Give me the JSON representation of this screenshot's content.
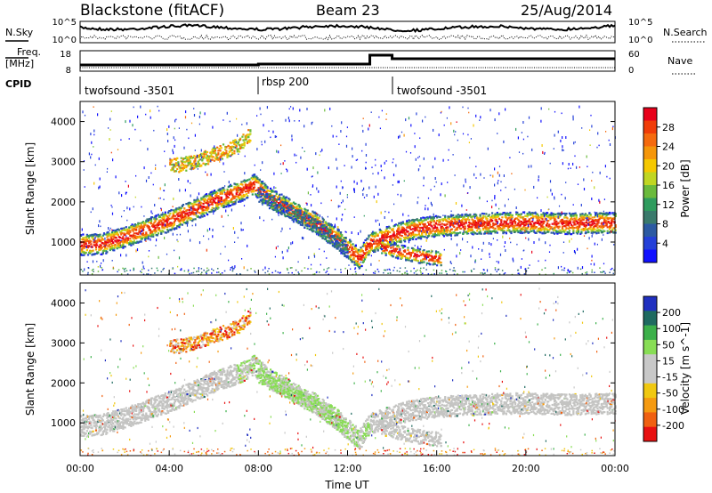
{
  "header": {
    "station": "Blackstone (fitACF)",
    "beam": "Beam 23",
    "date": "25/Aug/2014"
  },
  "side_labels": {
    "n_sky": "N.Sky",
    "n_search": "N.Search",
    "freq_top": "Freq.",
    "freq_unit": "[MHz]",
    "nave": "Nave",
    "cpid": "CPID"
  },
  "top_panel": {
    "left_ticks": [
      "10^5",
      "10^0"
    ],
    "right_ticks": [
      "10^5",
      "10^0"
    ],
    "freq_ticks": [
      "18",
      "8"
    ],
    "nave_ticks": [
      "60",
      "0"
    ]
  },
  "cpid_segments": [
    {
      "label": "twofsound -3501",
      "start": 0,
      "end": 8
    },
    {
      "label": "rbsp 200",
      "start": 8,
      "end": 14
    },
    {
      "label": "twofsound -3501",
      "start": 14,
      "end": 24
    }
  ],
  "power_colorbar": {
    "label": "Power [dB]",
    "ticks": [
      "28",
      "24",
      "20",
      "16",
      "12",
      "8",
      "4"
    ],
    "colors": [
      "#e8001a",
      "#f03c08",
      "#f56a0e",
      "#f5960a",
      "#f5c800",
      "#c0d622",
      "#6aba3c",
      "#2f9c5e",
      "#3a7a6c",
      "#2c5aa2",
      "#2440d8",
      "#1010ff"
    ]
  },
  "velocity_colorbar": {
    "label": "Velocity [m s^-1]",
    "ticks": [
      "200",
      "100",
      "50",
      "15",
      "-15",
      "-50",
      "-100",
      "-200"
    ],
    "colors": [
      "#2030c0",
      "#1f6a60",
      "#3cb04a",
      "#88dd55",
      "#c8c8c8",
      "#c8c8c8",
      "#f0c810",
      "#f59a10",
      "#f06010",
      "#e81010"
    ]
  },
  "chart_data": [
    {
      "type": "heatmap",
      "title": "Power",
      "xlabel": "",
      "ylabel": "Slant Range [km]",
      "xlim": [
        0,
        24
      ],
      "ylim": [
        180,
        4500
      ],
      "yticks": [
        1000,
        2000,
        3000,
        4000
      ],
      "bands": [
        {
          "name": "main",
          "points": [
            [
              0,
              950
            ],
            [
              1,
              980
            ],
            [
              2,
              1150
            ],
            [
              3,
              1350
            ],
            [
              4,
              1550
            ],
            [
              5,
              1800
            ],
            [
              6,
              2050
            ],
            [
              7,
              2250
            ],
            [
              7.8,
              2450
            ],
            [
              8.5,
              2100
            ],
            [
              9.5,
              1800
            ],
            [
              10.5,
              1500
            ],
            [
              11.5,
              1100
            ],
            [
              12.5,
              600
            ],
            [
              13,
              1000
            ],
            [
              14,
              1200
            ],
            [
              15,
              1350
            ],
            [
              16,
              1420
            ],
            [
              17,
              1450
            ],
            [
              18,
              1480
            ],
            [
              19,
              1500
            ],
            [
              20,
              1510
            ],
            [
              21,
              1490
            ],
            [
              22,
              1480
            ],
            [
              23,
              1500
            ],
            [
              24,
              1500
            ]
          ]
        },
        {
          "name": "upper-patch",
          "points": [
            [
              4,
              2900
            ],
            [
              5,
              3000
            ],
            [
              6,
              3200
            ],
            [
              7,
              3400
            ],
            [
              7.6,
              3700
            ]
          ]
        },
        {
          "name": "mid-echo",
          "points": [
            [
              13.5,
              900
            ],
            [
              14.5,
              750
            ],
            [
              15.5,
              650
            ],
            [
              16.2,
              600
            ]
          ]
        },
        {
          "name": "descending-arc",
          "points": [
            [
              8,
              2200
            ],
            [
              9,
              1900
            ],
            [
              10,
              1600
            ],
            [
              11,
              1250
            ],
            [
              12,
              800
            ]
          ]
        }
      ]
    },
    {
      "type": "heatmap",
      "title": "Velocity",
      "xlabel": "Time UT",
      "ylabel": "Slant Range [km]",
      "xlim": [
        0,
        24
      ],
      "ylim": [
        180,
        4500
      ],
      "x_tick_labels": [
        "00:00",
        "04:00",
        "08:00",
        "12:00",
        "16:00",
        "20:00",
        "00:00"
      ],
      "yticks": [
        1000,
        2000,
        3000,
        4000
      ]
    }
  ],
  "x_axis": {
    "label": "Time UT",
    "ticks": [
      "00:00",
      "04:00",
      "08:00",
      "12:00",
      "16:00",
      "20:00",
      "00:00"
    ]
  },
  "y_axis": {
    "label": "Slant Range [km]",
    "ticks": [
      "1000",
      "2000",
      "3000",
      "4000"
    ]
  }
}
